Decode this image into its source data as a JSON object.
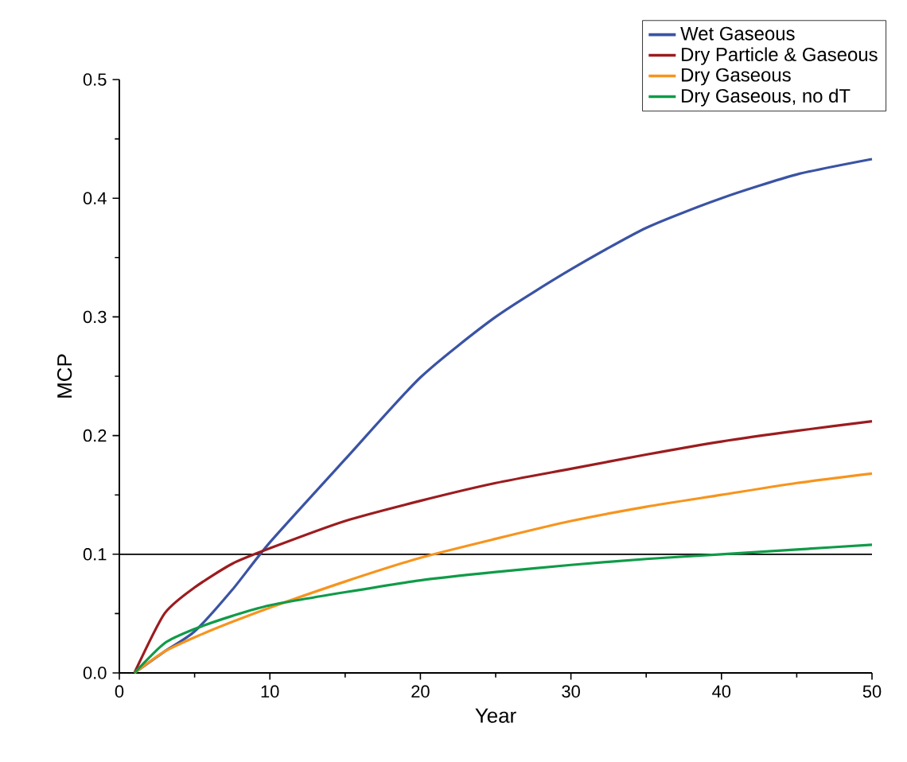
{
  "chart_data": {
    "type": "line",
    "xlabel": "Year",
    "ylabel": "MCP",
    "xlim": [
      0,
      50
    ],
    "ylim": [
      0,
      0.5
    ],
    "xticks": [
      0,
      10,
      20,
      30,
      40,
      50
    ],
    "yticks": [
      {
        "value": 0,
        "label": "0.0"
      },
      0.1,
      0.2,
      0.3,
      0.4,
      0.5
    ],
    "x": [
      1,
      3,
      5,
      7.5,
      10,
      15,
      20,
      25,
      30,
      35,
      40,
      45,
      50
    ],
    "series": [
      {
        "name": "Wet Gaseous",
        "color": "#3a53a4",
        "values": [
          0.0,
          0.018,
          0.035,
          0.07,
          0.11,
          0.18,
          0.249,
          0.3,
          0.34,
          0.375,
          0.4,
          0.42,
          0.433
        ]
      },
      {
        "name": "Dry Particle & Gaseous",
        "color": "#9b1c1f",
        "values": [
          0.0,
          0.05,
          0.072,
          0.092,
          0.105,
          0.128,
          0.145,
          0.16,
          0.172,
          0.184,
          0.195,
          0.204,
          0.212
        ]
      },
      {
        "name": "Dry Gaseous",
        "color": "#f7941d",
        "values": [
          0.0,
          0.018,
          0.03,
          0.043,
          0.055,
          0.077,
          0.097,
          0.113,
          0.128,
          0.14,
          0.15,
          0.16,
          0.168
        ]
      },
      {
        "name": "Dry Gaseous, no dT",
        "color": "#0f9b48",
        "values": [
          0.0,
          0.025,
          0.037,
          0.048,
          0.057,
          0.068,
          0.078,
          0.085,
          0.091,
          0.096,
          0.1,
          0.104,
          0.108
        ]
      }
    ],
    "ref_lines": [
      {
        "axis": "y",
        "value": 0.1,
        "color": "#000000"
      }
    ],
    "legend": "top right",
    "grid": false,
    "marker": "none",
    "line_style": "solid"
  }
}
